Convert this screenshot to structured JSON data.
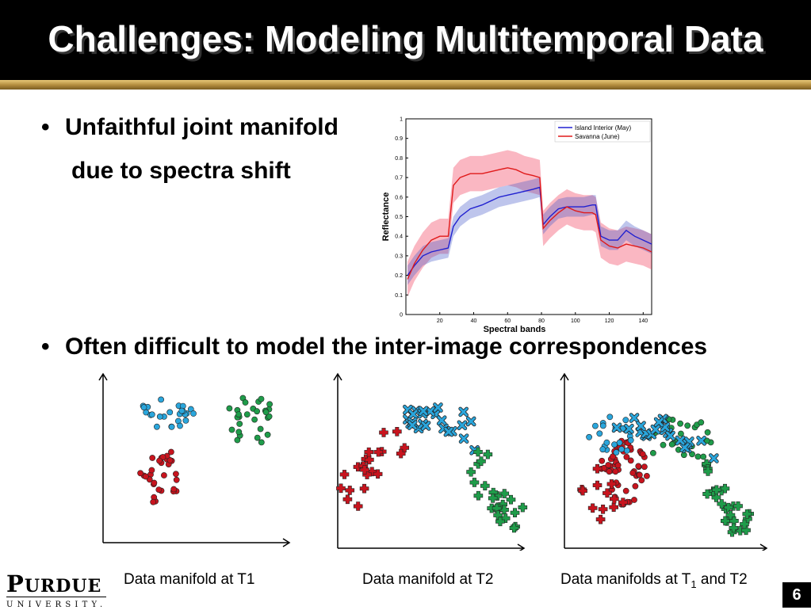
{
  "slide": {
    "title": "Challenges: Modeling Multitemporal Data",
    "page_number": "6"
  },
  "bullets": [
    {
      "line1": "Unfaithful joint manifold",
      "line2": "due to spectra shift"
    },
    {
      "line1": "Often difficult to model the inter-image correspondences"
    }
  ],
  "captions": {
    "t1": "Data manifold at T1",
    "t2": "Data manifold at T2",
    "both_pre": "Data manifolds at T",
    "both_sub": "1",
    "both_post": " and T2"
  },
  "logo": {
    "main_first": "P",
    "main_rest": "URDUE",
    "sub": "UNIVERSITY."
  },
  "colors": {
    "red": "#c8141e",
    "blue": "#2aa6dc",
    "green": "#1f9c4a",
    "gold": "#b08a3c",
    "island": "#2020d0",
    "savanna": "#e01a1a"
  },
  "chart_data": {
    "type": "line",
    "xlabel": "Spectral bands",
    "ylabel": "Reflectance",
    "xlim": [
      0,
      145
    ],
    "ylim": [
      0,
      1
    ],
    "xticks": [
      20,
      40,
      60,
      80,
      100,
      120,
      140
    ],
    "yticks": [
      0,
      0.1,
      0.2,
      0.3,
      0.4,
      0.5,
      0.6,
      0.7,
      0.8,
      0.9,
      1
    ],
    "legend_position": "top-right",
    "x": [
      1,
      5,
      10,
      15,
      20,
      25,
      28,
      32,
      38,
      45,
      50,
      55,
      60,
      65,
      70,
      75,
      79,
      81,
      85,
      90,
      95,
      100,
      105,
      110,
      112,
      115,
      120,
      125,
      130,
      135,
      140,
      145
    ],
    "series": [
      {
        "name": "Island Interior (May)",
        "color": "#2020d0",
        "values": [
          0.2,
          0.25,
          0.3,
          0.32,
          0.33,
          0.34,
          0.45,
          0.5,
          0.54,
          0.56,
          0.58,
          0.6,
          0.61,
          0.62,
          0.63,
          0.64,
          0.65,
          0.46,
          0.5,
          0.54,
          0.55,
          0.55,
          0.55,
          0.56,
          0.56,
          0.4,
          0.38,
          0.38,
          0.43,
          0.4,
          0.38,
          0.36
        ],
        "band": 0.05
      },
      {
        "name": "Savanna (June)",
        "color": "#e01a1a",
        "values": [
          0.18,
          0.26,
          0.33,
          0.38,
          0.4,
          0.4,
          0.66,
          0.7,
          0.72,
          0.72,
          0.73,
          0.74,
          0.75,
          0.74,
          0.72,
          0.71,
          0.7,
          0.44,
          0.48,
          0.52,
          0.55,
          0.53,
          0.52,
          0.52,
          0.51,
          0.38,
          0.35,
          0.34,
          0.36,
          0.35,
          0.34,
          0.32
        ],
        "band": 0.09
      }
    ]
  }
}
